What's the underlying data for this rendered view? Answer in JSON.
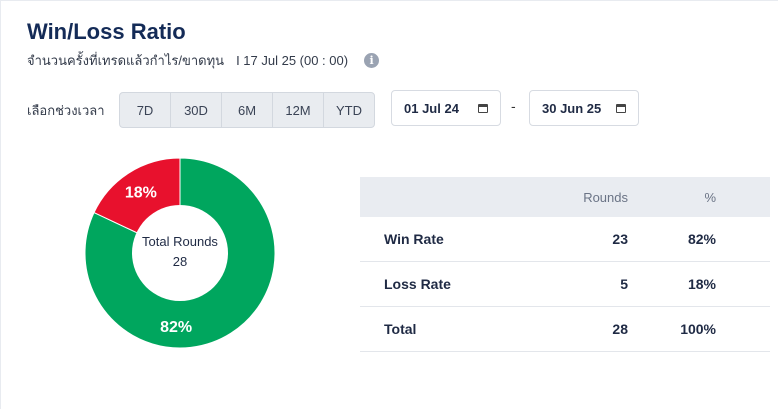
{
  "header": {
    "title": "Win/Loss Ratio",
    "subtitle": "จำนวนครั้งที่เทรดแล้วกำไร/ขาดทุน",
    "timestamp": "I 17 Jul 25 (00 : 00)",
    "info_glyph": "i"
  },
  "period": {
    "label": "เลือกช่วงเวลา",
    "options": [
      "7D",
      "30D",
      "6M",
      "12M",
      "YTD"
    ],
    "start_date": "01 Jul 24",
    "end_date": "30 Jun 25",
    "separator": "-"
  },
  "chart_data": {
    "type": "pie",
    "center_label": "Total Rounds",
    "center_value": "28",
    "slices": [
      {
        "name": "Win Rate",
        "value": 82,
        "label": "82%",
        "color": "#00a65e"
      },
      {
        "name": "Loss Rate",
        "value": 18,
        "label": "18%",
        "color": "#e8112d"
      }
    ]
  },
  "table": {
    "headers": [
      "",
      "Rounds",
      "%"
    ],
    "rows": [
      {
        "label": "Win Rate",
        "rounds": "23",
        "pct": "82%"
      },
      {
        "label": "Loss Rate",
        "rounds": "5",
        "pct": "18%"
      },
      {
        "label": "Total",
        "rounds": "28",
        "pct": "100%"
      }
    ]
  }
}
